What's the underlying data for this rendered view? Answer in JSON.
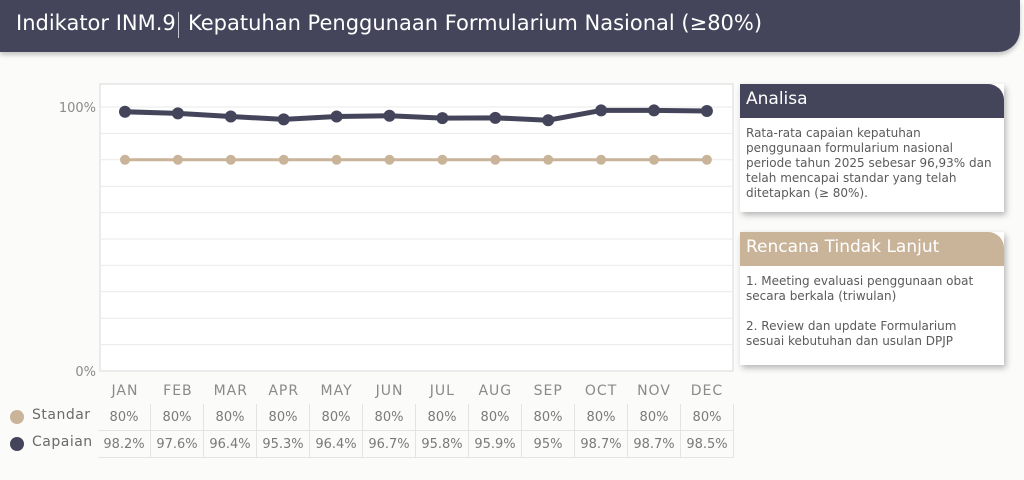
{
  "header": {
    "code": "Indikator INM.9",
    "title": "Kepatuhan Penggunaan Formularium Nasional (≥80%)"
  },
  "colors": {
    "capaian": "#44455a",
    "standar": "#c9b49a"
  },
  "chart_data": {
    "type": "line",
    "categories": [
      "JAN",
      "FEB",
      "MAR",
      "APR",
      "MAY",
      "JUN",
      "JUL",
      "AUG",
      "SEP",
      "OCT",
      "NOV",
      "DEC"
    ],
    "series": [
      {
        "name": "Standar",
        "values": [
          80,
          80,
          80,
          80,
          80,
          80,
          80,
          80,
          80,
          80,
          80,
          80
        ]
      },
      {
        "name": "Capaian",
        "values": [
          98.2,
          97.6,
          96.4,
          95.3,
          96.4,
          96.7,
          95.8,
          95.9,
          95,
          98.7,
          98.7,
          98.5
        ]
      }
    ],
    "ylim": [
      0,
      100
    ],
    "y_tick_labels": [
      "0%",
      "100%"
    ],
    "grid": true,
    "legend": "bottom-left, aligned with data table rows",
    "table": {
      "standar": [
        "80%",
        "80%",
        "80%",
        "80%",
        "80%",
        "80%",
        "80%",
        "80%",
        "80%",
        "80%",
        "80%",
        "80%"
      ],
      "capaian": [
        "98.2%",
        "97.6%",
        "96.4%",
        "95.3%",
        "96.4%",
        "96.7%",
        "95.8%",
        "95.9%",
        "95%",
        "98.7%",
        "98.7%",
        "98.5%"
      ]
    }
  },
  "analisa": {
    "title": "Analisa",
    "text": "Rata-rata capaian kepatuhan penggunaan formularium nasional periode tahun 2025 sebesar 96,93% dan telah mencapai standar yang telah ditetapkan (≥ 80%)."
  },
  "rencana": {
    "title": "Rencana Tindak Lanjut",
    "items": [
      "1. Meeting evaluasi penggunaan obat secara berkala (triwulan)",
      "2. Review dan update Formularium sesuai kebutuhan dan usulan DPJP"
    ]
  }
}
